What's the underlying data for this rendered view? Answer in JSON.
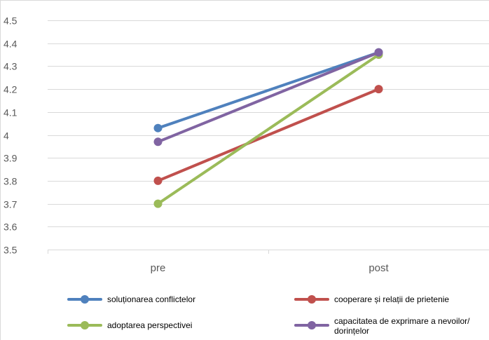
{
  "chart_data": {
    "type": "line",
    "title": "",
    "xlabel": "",
    "ylabel": "",
    "categories": [
      "pre",
      "post"
    ],
    "ylim": [
      3.5,
      4.5
    ],
    "yticks": [
      "3.5",
      "3.6",
      "3.7",
      "3.8",
      "3.9",
      "4",
      "4.1",
      "4.2",
      "4.3",
      "4.4",
      "4.5"
    ],
    "grid": true,
    "legend_position": "bottom",
    "series": [
      {
        "name": "soluționarea conflictelor",
        "color": "#4F81BD",
        "values": [
          4.03,
          4.36
        ]
      },
      {
        "name": "cooperare și relații de prietenie",
        "color": "#C0504D",
        "values": [
          3.8,
          4.2
        ]
      },
      {
        "name": "adoptarea perspectivei",
        "color": "#9BBB59",
        "values": [
          3.7,
          4.35
        ]
      },
      {
        "name": "capacitatea de exprimare a nevoilor/ dorințelor",
        "color": "#8064A2",
        "values": [
          3.97,
          4.36
        ]
      }
    ]
  }
}
